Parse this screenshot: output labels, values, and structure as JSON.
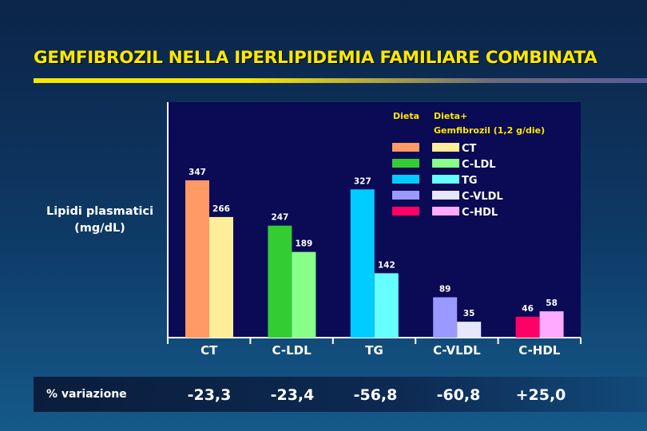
{
  "title": "GEMFIBROZIL NELLA IPERLIPIDEMIA FAMILIARE COMBINATA",
  "ylabel_line1": "Lipidi plasmatici",
  "ylabel_line2": "(mg/dL)",
  "legend": {
    "header_dieta": "Dieta",
    "header_combo_line1": "Dieta+",
    "header_combo_line2": "Gemfibrozil (1,2 g/die)"
  },
  "percent_row": {
    "label": "% variazione",
    "values": [
      "-23,3",
      "-23,4",
      "-56,8",
      "-60,8",
      "+25,0"
    ]
  },
  "chart_data": {
    "type": "bar",
    "categories": [
      "CT",
      "C-LDL",
      "TG",
      "C-VLDL",
      "C-HDL"
    ],
    "series": [
      {
        "name": "Dieta",
        "values": [
          347,
          247,
          327,
          89,
          46
        ]
      },
      {
        "name": "Dieta+ Gemfibrozil (1,2 g/die)",
        "values": [
          266,
          189,
          142,
          35,
          58
        ]
      }
    ],
    "colors": {
      "Dieta": [
        "#ff9966",
        "#33cc33",
        "#00ccff",
        "#9999ff",
        "#ff0066"
      ],
      "Dieta+ Gemfibrozil (1,2 g/die)": [
        "#ffee99",
        "#88ff88",
        "#66ffff",
        "#e6e6ff",
        "#ffaaff"
      ]
    },
    "legend_entries": [
      "CT",
      "C-LDL",
      "TG",
      "C-VLDL",
      "C-HDL"
    ],
    "ylim": [
      0,
      400
    ],
    "grid": false,
    "legend_position": "top-right",
    "plot_background": "#0a0a55"
  }
}
